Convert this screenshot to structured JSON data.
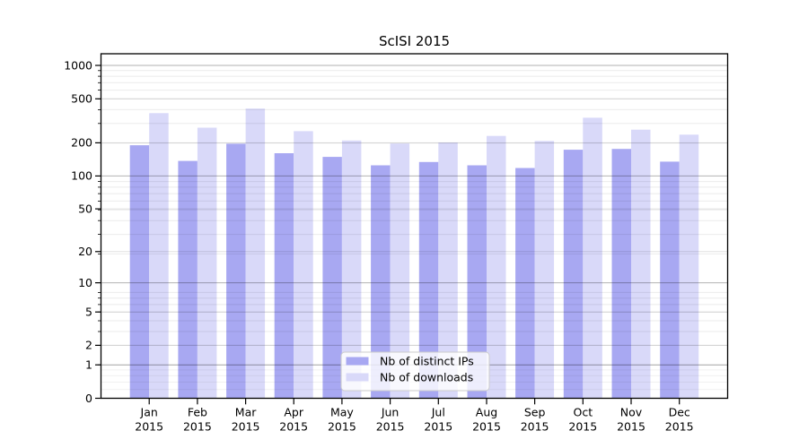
{
  "chart_data": {
    "type": "bar",
    "title": "ScISI 2015",
    "categories": [
      "Jan 2015",
      "Feb 2015",
      "Mar 2015",
      "Apr 2015",
      "May 2015",
      "Jun 2015",
      "Jul 2015",
      "Aug 2015",
      "Sep 2015",
      "Oct 2015",
      "Nov 2015",
      "Dec 2015"
    ],
    "series": [
      {
        "name": "Nb of distinct IPs",
        "color": "#a8a8f2",
        "values": [
          190,
          137,
          196,
          161,
          149,
          125,
          134,
          125,
          118,
          173,
          176,
          135
        ]
      },
      {
        "name": "Nb of downloads",
        "color": "#d9d9f9",
        "values": [
          371,
          274,
          408,
          255,
          210,
          197,
          201,
          231,
          208,
          337,
          263,
          237
        ]
      }
    ],
    "xlabel": "",
    "ylabel": "",
    "yscale": "log(1+y)",
    "yticks": [
      0,
      1,
      2,
      5,
      10,
      20,
      50,
      100,
      200,
      500,
      1000
    ],
    "ylim": [
      0,
      1300
    ],
    "grid": "horizontal major+minor",
    "legend": {
      "position": "inside lower-center",
      "items": [
        "Nb of distinct IPs",
        "Nb of downloads"
      ]
    }
  },
  "colors": {
    "background": "#ffffff",
    "axis": "#000000",
    "grid_major": "rgba(0,0,0,0.30)",
    "grid_mid": "rgba(0,0,0,0.12)",
    "grid_minor": "rgba(0,0,0,0.08)",
    "grid_sub": "rgba(0,0,0,0.06)",
    "legend_border": "#cccccc",
    "legend_bg": "rgba(255,255,255,0.8)"
  }
}
